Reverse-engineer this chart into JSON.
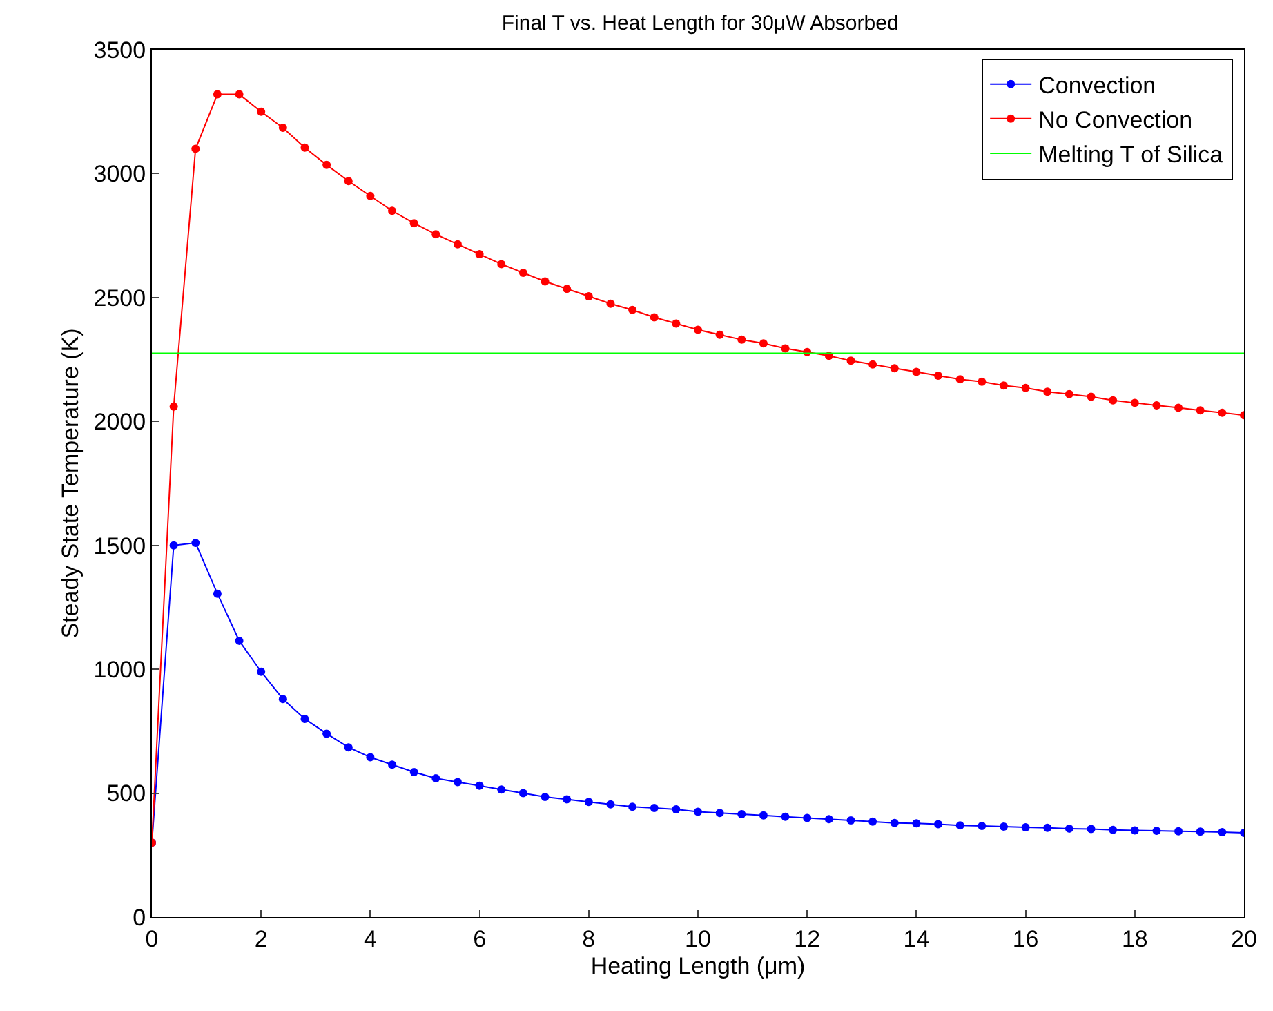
{
  "chart_data": {
    "type": "line",
    "title": "Final T vs. Heat Length for 30μW Absorbed",
    "xlabel": "Heating Length (μm)",
    "ylabel": "Steady State Temperature (K)",
    "x": [
      0,
      0.4,
      0.8,
      1.2,
      1.6,
      2.0,
      2.4,
      2.8,
      3.2,
      3.6,
      4.0,
      4.4,
      4.8,
      5.2,
      5.6,
      6.0,
      6.4,
      6.8,
      7.2,
      7.6,
      8.0,
      8.4,
      8.8,
      9.2,
      9.6,
      10.0,
      10.4,
      10.8,
      11.2,
      11.6,
      12.0,
      12.4,
      12.8,
      13.2,
      13.6,
      14.0,
      14.4,
      14.8,
      15.2,
      15.6,
      16.0,
      16.4,
      16.8,
      17.2,
      17.6,
      18.0,
      18.4,
      18.8,
      19.2,
      19.6,
      20.0
    ],
    "series": [
      {
        "name": "Convection",
        "color": "#0000ff",
        "marker": "circle",
        "values": [
          300,
          1500,
          1510,
          1305,
          1115,
          990,
          880,
          800,
          740,
          685,
          645,
          615,
          585,
          560,
          545,
          530,
          515,
          500,
          485,
          475,
          465,
          455,
          445,
          440,
          435,
          425,
          420,
          415,
          410,
          405,
          400,
          395,
          390,
          385,
          380,
          378,
          375,
          370,
          368,
          365,
          362,
          360,
          357,
          355,
          352,
          350,
          348,
          346,
          345,
          343,
          340
        ]
      },
      {
        "name": "No Convection",
        "color": "#ff0000",
        "marker": "circle",
        "values": [
          300,
          2060,
          3100,
          3320,
          3320,
          3250,
          3185,
          3105,
          3035,
          2970,
          2910,
          2850,
          2800,
          2755,
          2715,
          2675,
          2635,
          2600,
          2565,
          2535,
          2505,
          2475,
          2450,
          2420,
          2395,
          2370,
          2350,
          2330,
          2315,
          2295,
          2280,
          2265,
          2245,
          2230,
          2215,
          2200,
          2185,
          2170,
          2160,
          2145,
          2135,
          2120,
          2110,
          2100,
          2085,
          2075,
          2065,
          2055,
          2045,
          2035,
          2025
        ]
      },
      {
        "name": "Melting T of Silica",
        "color": "#00ff00",
        "marker": "none",
        "x": [
          0,
          20
        ],
        "values": [
          2275,
          2275
        ]
      }
    ],
    "xlim": [
      0,
      20
    ],
    "xticks": [
      0,
      2,
      4,
      6,
      8,
      10,
      12,
      14,
      16,
      18,
      20
    ],
    "ylim": [
      0,
      3500
    ],
    "yticks": [
      0,
      500,
      1000,
      1500,
      2000,
      2500,
      3000,
      3500
    ],
    "legend": "top right",
    "line_style": "solid"
  }
}
